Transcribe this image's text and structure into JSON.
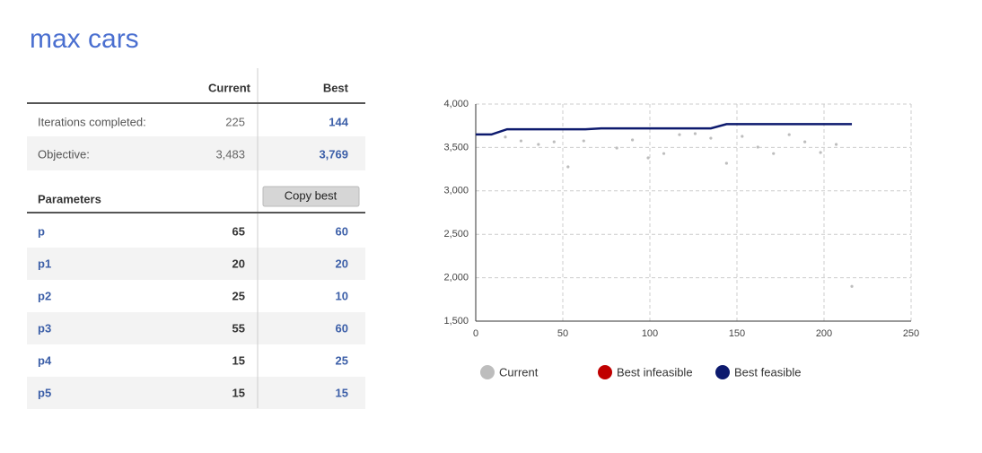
{
  "title": "max cars",
  "table": {
    "header": [
      "Current",
      "Best"
    ],
    "rows": [
      {
        "label": "Iterations completed:",
        "current": "225",
        "best": "144"
      },
      {
        "label": "Objective:",
        "current": "3,483",
        "best": "3,769"
      }
    ],
    "parameters_header": "Parameters",
    "copy_button": "Copy best",
    "parameters": [
      {
        "name": "p",
        "current": "65",
        "best": "60"
      },
      {
        "name": "p1",
        "current": "20",
        "best": "20"
      },
      {
        "name": "p2",
        "current": "25",
        "best": "10"
      },
      {
        "name": "p3",
        "current": "55",
        "best": "60"
      },
      {
        "name": "p4",
        "current": "15",
        "best": "25"
      },
      {
        "name": "p5",
        "current": "15",
        "best": "15"
      }
    ]
  },
  "chart_data": {
    "type": "scatter",
    "xlim": [
      0,
      250
    ],
    "xticks": [
      0,
      50,
      100,
      150,
      200,
      250
    ],
    "ylim": [
      1500,
      4000
    ],
    "yticks": [
      {
        "value": 1500,
        "label": "1,500"
      },
      {
        "value": 2000,
        "label": "2,000"
      },
      {
        "value": 2500,
        "label": "2,500"
      },
      {
        "value": 3000,
        "label": "3,000"
      },
      {
        "value": 3500,
        "label": "3,500"
      },
      {
        "value": 4000,
        "label": "4,000"
      }
    ],
    "grid": true,
    "legend": "bottom",
    "series": [
      {
        "name": "Current",
        "color": "#bdbdbd",
        "mode": "markers",
        "x": [
          17,
          26,
          36,
          45,
          53,
          62,
          81,
          90,
          99,
          108,
          117,
          126,
          135,
          144,
          153,
          162,
          171,
          180,
          189,
          198,
          207,
          216
        ],
        "values": [
          3620,
          3576,
          3535,
          3565,
          3277,
          3576,
          3494,
          3587,
          3380,
          3430,
          3648,
          3659,
          3607,
          3318,
          3628,
          3504,
          3430,
          3648,
          3565,
          3442,
          3535,
          1900
        ]
      },
      {
        "name": "Best infeasible",
        "color": "#c00000",
        "mode": "markers",
        "x": [],
        "values": []
      },
      {
        "name": "Best feasible",
        "color": "#0d1a6e",
        "mode": "line",
        "x": [
          0,
          9,
          18,
          63,
          72,
          135,
          144,
          216
        ],
        "values": [
          3650,
          3650,
          3710,
          3710,
          3720,
          3720,
          3769,
          3769
        ]
      }
    ]
  }
}
